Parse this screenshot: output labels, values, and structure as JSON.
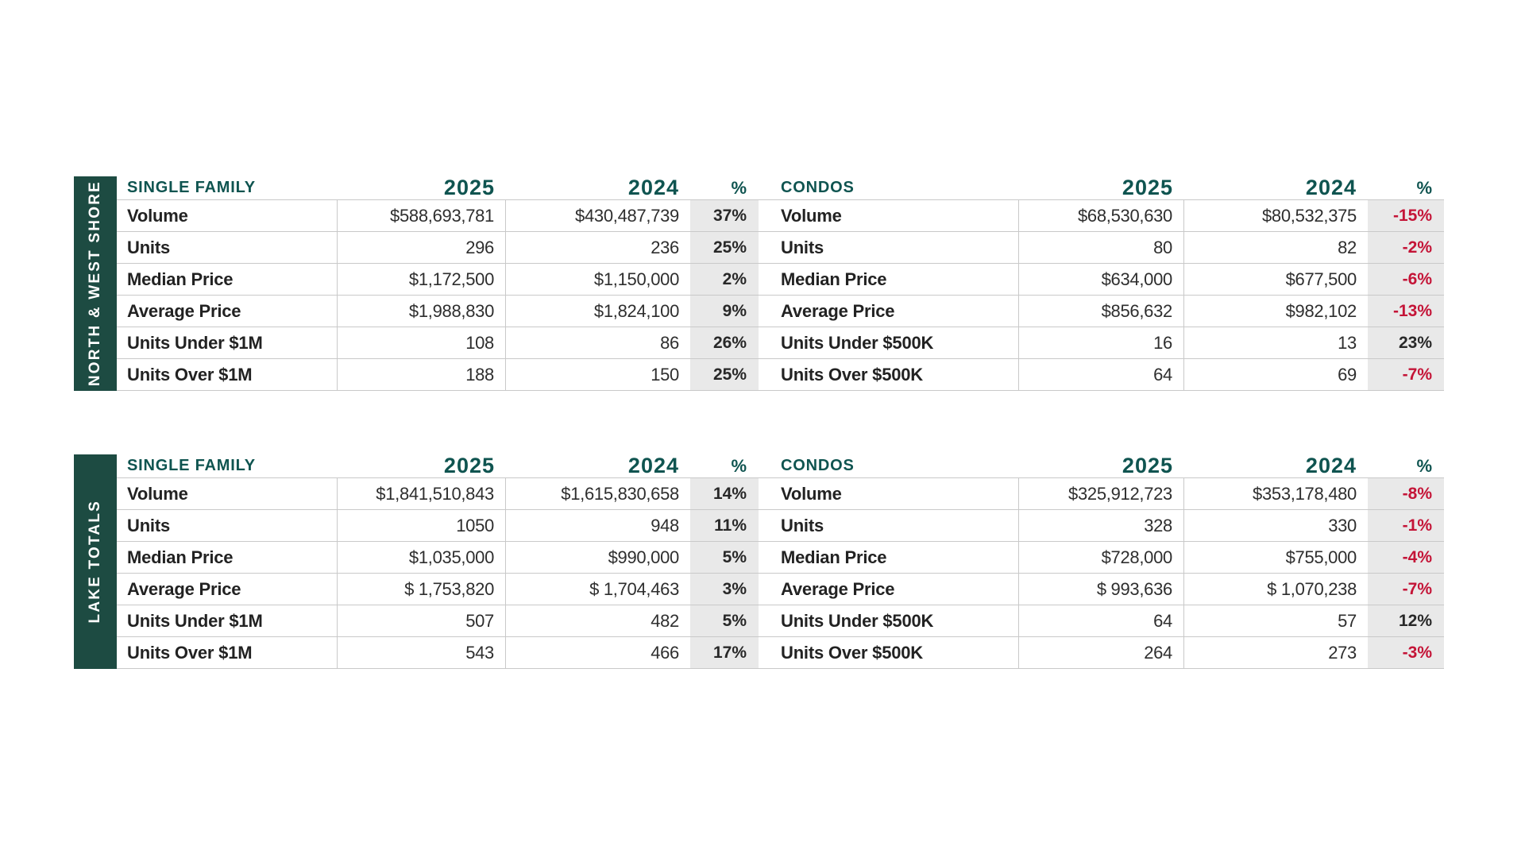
{
  "colors": {
    "sidebar_green": "#1d4b42",
    "header_teal": "#0f5450",
    "negative_red": "#c41437",
    "pct_band_gray": "#e9e9e9",
    "grid_line": "#c9c9c9",
    "text_dark": "#282828"
  },
  "tables": [
    {
      "region_label": "NORTH & WEST SHORE",
      "sections": [
        {
          "category": "SINGLE FAMILY",
          "h2025": "2025",
          "h2024": "2024",
          "hpct": "%",
          "rows": [
            {
              "label": "Volume",
              "y2025": "$588,693,781",
              "y2024": "$430,487,739",
              "pct": "37%",
              "neg": false
            },
            {
              "label": "Units",
              "y2025": "296",
              "y2024": "236",
              "pct": "25%",
              "neg": false
            },
            {
              "label": "Median Price",
              "y2025": "$1,172,500",
              "y2024": "$1,150,000",
              "pct": "2%",
              "neg": false
            },
            {
              "label": "Average Price",
              "y2025": "$1,988,830",
              "y2024": "$1,824,100",
              "pct": "9%",
              "neg": false
            },
            {
              "label": "Units Under $1M",
              "y2025": "108",
              "y2024": "86",
              "pct": "26%",
              "neg": false
            },
            {
              "label": "Units Over $1M",
              "y2025": "188",
              "y2024": "150",
              "pct": "25%",
              "neg": false
            }
          ]
        },
        {
          "category": "CONDOS",
          "h2025": "2025",
          "h2024": "2024",
          "hpct": "%",
          "rows": [
            {
              "label": "Volume",
              "y2025": "$68,530,630",
              "y2024": "$80,532,375",
              "pct": "-15%",
              "neg": true
            },
            {
              "label": "Units",
              "y2025": "80",
              "y2024": "82",
              "pct": "-2%",
              "neg": true
            },
            {
              "label": "Median Price",
              "y2025": "$634,000",
              "y2024": "$677,500",
              "pct": "-6%",
              "neg": true
            },
            {
              "label": "Average Price",
              "y2025": "$856,632",
              "y2024": "$982,102",
              "pct": "-13%",
              "neg": true
            },
            {
              "label": "Units Under $500K",
              "y2025": "16",
              "y2024": "13",
              "pct": "23%",
              "neg": false
            },
            {
              "label": "Units Over $500K",
              "y2025": "64",
              "y2024": "69",
              "pct": "-7%",
              "neg": true
            }
          ]
        }
      ]
    },
    {
      "region_label": "LAKE TOTALS",
      "sections": [
        {
          "category": "SINGLE FAMILY",
          "h2025": "2025",
          "h2024": "2024",
          "hpct": "%",
          "rows": [
            {
              "label": "Volume",
              "y2025": "$1,841,510,843",
              "y2024": "$1,615,830,658",
              "pct": "14%",
              "neg": false
            },
            {
              "label": "Units",
              "y2025": "1050",
              "y2024": "948",
              "pct": "11%",
              "neg": false
            },
            {
              "label": "Median Price",
              "y2025": "$1,035,000",
              "y2024": "$990,000",
              "pct": "5%",
              "neg": false
            },
            {
              "label": "Average Price",
              "y2025": "$ 1,753,820",
              "y2024": "$ 1,704,463",
              "pct": "3%",
              "neg": false
            },
            {
              "label": "Units Under $1M",
              "y2025": "507",
              "y2024": "482",
              "pct": "5%",
              "neg": false
            },
            {
              "label": "Units Over $1M",
              "y2025": "543",
              "y2024": "466",
              "pct": "17%",
              "neg": false
            }
          ]
        },
        {
          "category": "CONDOS",
          "h2025": "2025",
          "h2024": "2024",
          "hpct": "%",
          "rows": [
            {
              "label": "Volume",
              "y2025": "$325,912,723",
              "y2024": "$353,178,480",
              "pct": "-8%",
              "neg": true
            },
            {
              "label": "Units",
              "y2025": "328",
              "y2024": "330",
              "pct": "-1%",
              "neg": true
            },
            {
              "label": "Median Price",
              "y2025": "$728,000",
              "y2024": "$755,000",
              "pct": "-4%",
              "neg": true
            },
            {
              "label": "Average Price",
              "y2025": "$ 993,636",
              "y2024": "$ 1,070,238",
              "pct": "-7%",
              "neg": true
            },
            {
              "label": "Units Under $500K",
              "y2025": "64",
              "y2024": "57",
              "pct": "12%",
              "neg": false
            },
            {
              "label": "Units Over $500K",
              "y2025": "264",
              "y2024": "273",
              "pct": "-3%",
              "neg": true
            }
          ]
        }
      ]
    }
  ]
}
